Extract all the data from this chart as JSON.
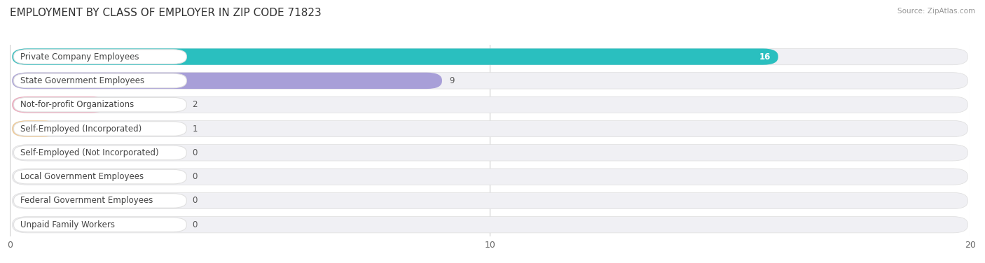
{
  "title": "EMPLOYMENT BY CLASS OF EMPLOYER IN ZIP CODE 71823",
  "source": "Source: ZipAtlas.com",
  "categories": [
    "Private Company Employees",
    "State Government Employees",
    "Not-for-profit Organizations",
    "Self-Employed (Incorporated)",
    "Self-Employed (Not Incorporated)",
    "Local Government Employees",
    "Federal Government Employees",
    "Unpaid Family Workers"
  ],
  "values": [
    16,
    9,
    2,
    1,
    0,
    0,
    0,
    0
  ],
  "bar_colors": [
    "#2abfbf",
    "#a89fd8",
    "#f4a0b8",
    "#f5c98a",
    "#f4a0a8",
    "#a8c8f0",
    "#c8aad8",
    "#7dd0c8"
  ],
  "row_bg_color": "#f0f0f4",
  "xlim": [
    0,
    20
  ],
  "xticks": [
    0,
    10,
    20
  ],
  "title_fontsize": 11,
  "label_fontsize": 8.5,
  "value_fontsize": 8.5,
  "background_color": "#ffffff",
  "grid_color": "#cccccc",
  "value_16_color": "#ffffff",
  "value_other_color": "#555555"
}
